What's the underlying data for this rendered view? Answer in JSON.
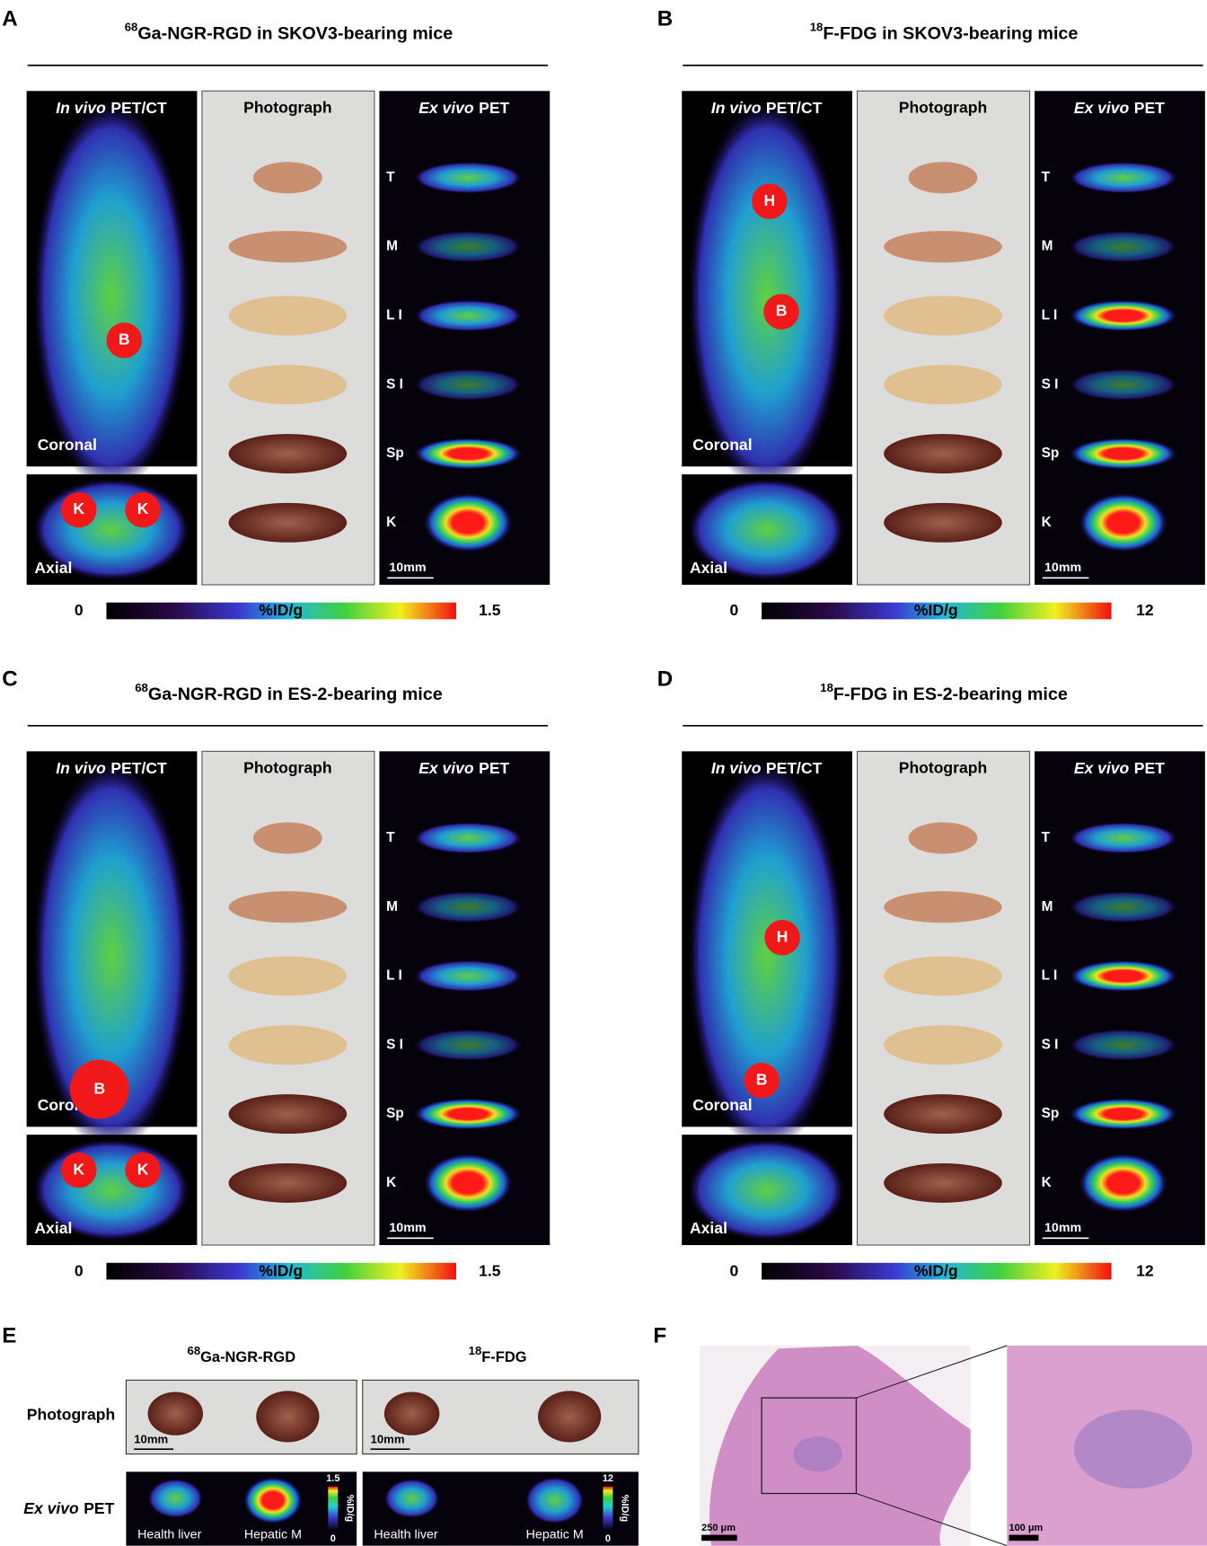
{
  "panels": [
    {
      "letter": "A",
      "isotope": "68",
      "title": "Ga-NGR-RGD in SKOV3-bearing mice",
      "headers": {
        "pet_ct_italic": "In vivo",
        "pet_ct": "PET/CT",
        "photo": "Photograph",
        "ex_italic": "Ex vivo",
        "ex": "PET"
      },
      "views": [
        "Coronal",
        "Axial"
      ],
      "markers": [
        "B",
        "K",
        "K"
      ],
      "organs": [
        "T",
        "M",
        "L I",
        "S I",
        "Sp",
        "K"
      ],
      "scale": "10mm",
      "colorbar": {
        "min": 0,
        "label": "%ID/g",
        "max": 1.5
      }
    },
    {
      "letter": "B",
      "isotope": "18",
      "title": "F-FDG in SKOV3-bearing mice",
      "headers": {
        "pet_ct_italic": "In vivo",
        "pet_ct": "PET/CT",
        "photo": "Photograph",
        "ex_italic": "Ex vivo",
        "ex": "PET"
      },
      "views": [
        "Coronal",
        "Axial"
      ],
      "markers": [
        "H",
        "B"
      ],
      "organs": [
        "T",
        "M",
        "L I",
        "S I",
        "Sp",
        "K"
      ],
      "scale": "10mm",
      "colorbar": {
        "min": 0,
        "label": "%ID/g",
        "max": 12
      }
    },
    {
      "letter": "C",
      "isotope": "68",
      "title": "Ga-NGR-RGD in ES-2-bearing mice",
      "headers": {
        "pet_ct_italic": "In vivo",
        "pet_ct": "PET/CT",
        "photo": "Photograph",
        "ex_italic": "Ex vivo",
        "ex": "PET"
      },
      "views": [
        "Coronal",
        "Axial"
      ],
      "markers": [
        "B",
        "K",
        "K"
      ],
      "organs": [
        "T",
        "M",
        "L I",
        "S I",
        "Sp",
        "K"
      ],
      "scale": "10mm",
      "colorbar": {
        "min": 0,
        "label": "%ID/g",
        "max": 1.5
      }
    },
    {
      "letter": "D",
      "isotope": "18",
      "title": "F-FDG in ES-2-bearing mice",
      "headers": {
        "pet_ct_italic": "In vivo",
        "pet_ct": "PET/CT",
        "photo": "Photograph",
        "ex_italic": "Ex vivo",
        "ex": "PET"
      },
      "views": [
        "Coronal",
        "Axial"
      ],
      "markers": [
        "H",
        "B"
      ],
      "organs": [
        "T",
        "M",
        "L I",
        "S I",
        "Sp",
        "K"
      ],
      "scale": "10mm",
      "colorbar": {
        "min": 0,
        "label": "%ID/g",
        "max": 12
      }
    }
  ],
  "panel_e": {
    "letter": "E",
    "columns": [
      {
        "isotope": "68",
        "name": "Ga-NGR-RGD"
      },
      {
        "isotope": "18",
        "name": "F-FDG"
      }
    ],
    "rows": {
      "photo": "Photograph",
      "ex_italic": "Ex vivo",
      "ex": "PET"
    },
    "scales": [
      "10mm",
      "10mm"
    ],
    "colorbars": [
      {
        "max": 1.5,
        "min": 0,
        "label": "%ID/g"
      },
      {
        "max": 12,
        "min": 0,
        "label": "%ID/g"
      }
    ],
    "captions": [
      [
        "Health liver",
        "Hepatic M"
      ],
      [
        "Health liver",
        "Hepatic M"
      ]
    ]
  },
  "panel_f": {
    "letter": "F",
    "scales": [
      "250 μm",
      "100 μm"
    ]
  }
}
